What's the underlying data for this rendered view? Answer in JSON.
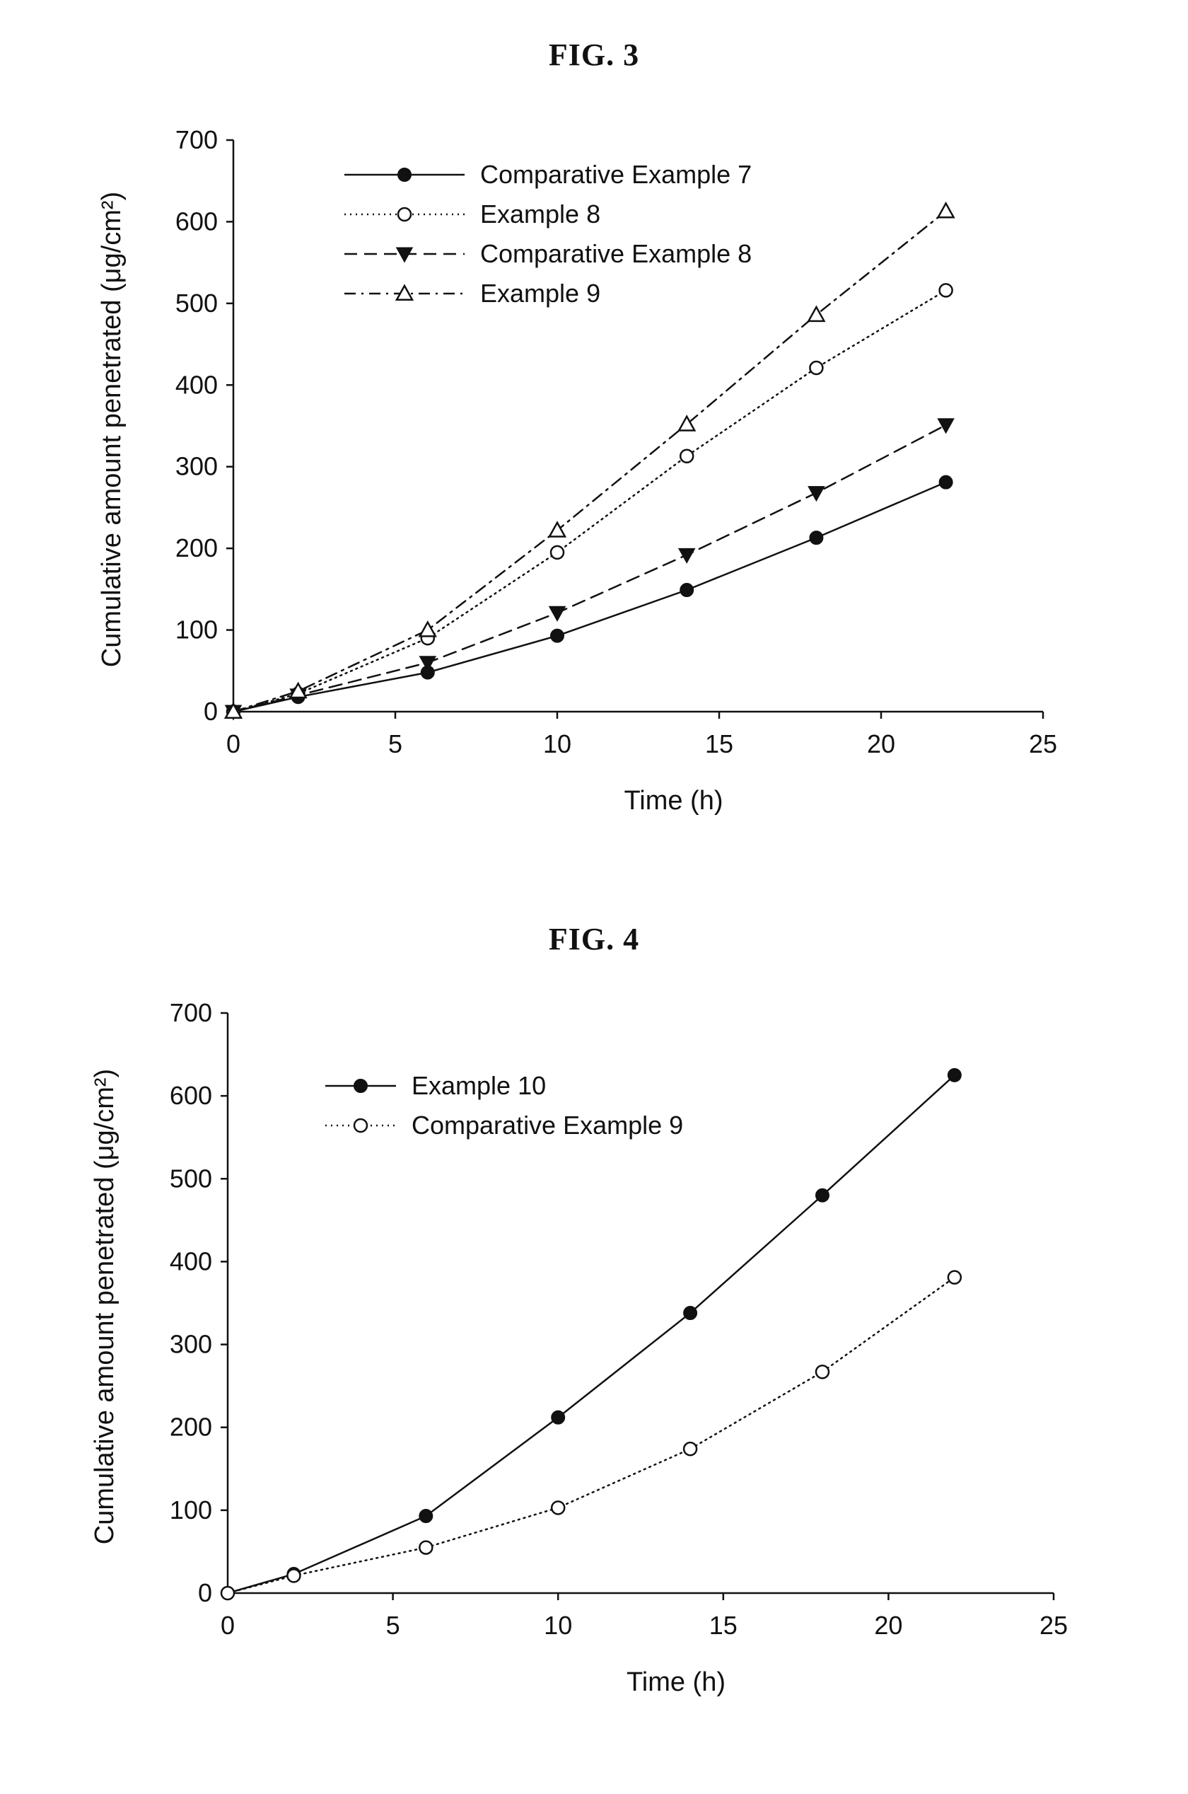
{
  "chart_data": [
    {
      "type": "line",
      "title": "FIG. 3",
      "xlabel": "Time (h)",
      "ylabel": "Cumulative amount penetrated (μg/cm²)",
      "xlim": [
        0,
        25
      ],
      "ylim": [
        0,
        700
      ],
      "xticks": [
        "0",
        "5",
        "10",
        "15",
        "20",
        "25"
      ],
      "yticks": [
        "0",
        "100",
        "200",
        "300",
        "400",
        "500",
        "600",
        "700"
      ],
      "grid": false,
      "legend_position": "top-left",
      "series": [
        {
          "name": "Comparative Example 7",
          "marker": "filled-circle",
          "line_style": "solid",
          "x": [
            0,
            2,
            6,
            10,
            14,
            18,
            22
          ],
          "y": [
            0,
            18,
            48,
            93,
            149,
            213,
            281
          ]
        },
        {
          "name": "Example 8",
          "marker": "open-circle",
          "line_style": "dotted",
          "x": [
            0,
            2,
            6,
            10,
            14,
            18,
            22
          ],
          "y": [
            0,
            22,
            90,
            195,
            313,
            421,
            516
          ]
        },
        {
          "name": "Comparative Example 8",
          "marker": "filled-triangle-down",
          "line_style": "dashed",
          "x": [
            0,
            2,
            6,
            10,
            14,
            18,
            22
          ],
          "y": [
            0,
            20,
            60,
            121,
            192,
            268,
            351
          ]
        },
        {
          "name": "Example 9",
          "marker": "open-triangle-up",
          "line_style": "dash-dot",
          "x": [
            0,
            2,
            6,
            10,
            14,
            18,
            22
          ],
          "y": [
            0,
            25,
            100,
            222,
            352,
            486,
            613
          ]
        }
      ]
    },
    {
      "type": "line",
      "title": "FIG. 4",
      "xlabel": "Time (h)",
      "ylabel": "Cumulative amount penetrated (μg/cm²)",
      "xlim": [
        0,
        25
      ],
      "ylim": [
        0,
        700
      ],
      "xticks": [
        "0",
        "5",
        "10",
        "15",
        "20",
        "25"
      ],
      "yticks": [
        "0",
        "100",
        "200",
        "300",
        "400",
        "500",
        "600",
        "700"
      ],
      "grid": false,
      "legend_position": "top-left",
      "series": [
        {
          "name": "Example 10",
          "marker": "filled-circle",
          "line_style": "solid",
          "x": [
            0,
            2,
            6,
            10,
            14,
            18,
            22
          ],
          "y": [
            0,
            23,
            93,
            212,
            338,
            480,
            625
          ]
        },
        {
          "name": "Comparative Example 9",
          "marker": "open-circle",
          "line_style": "dotted",
          "x": [
            0,
            2,
            6,
            10,
            14,
            18,
            22
          ],
          "y": [
            0,
            21,
            55,
            103,
            174,
            267,
            381
          ]
        }
      ]
    }
  ]
}
